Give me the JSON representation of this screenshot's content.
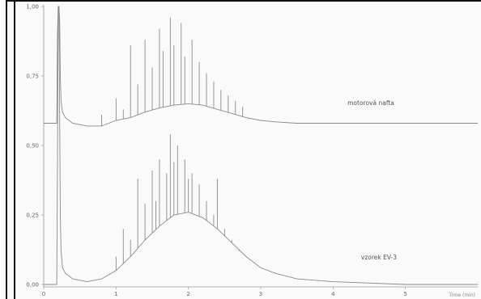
{
  "chart_data": {
    "type": "line",
    "title": "",
    "xlabel": "Time (min)",
    "ylabel": "",
    "xlim": [
      0,
      6
    ],
    "ylim": [
      0,
      1
    ],
    "grid": false,
    "x_ticks": [
      0,
      1,
      2,
      3,
      4,
      5
    ],
    "x_tick_labels": [
      "0",
      "1",
      "2",
      "3",
      "4",
      "5"
    ],
    "y_ticks": [
      0,
      0.25,
      0.5,
      0.75,
      1.0
    ],
    "y_tick_labels": [
      "0,00",
      "0,25",
      "0,50",
      "0,75",
      "1,00"
    ],
    "series": [
      {
        "name": "motorová nafta",
        "color": "#8a8a8a",
        "baseline": 0.58,
        "x": [
          0.0,
          0.1,
          0.18,
          0.19,
          0.2,
          0.21,
          0.22,
          0.23,
          0.24,
          0.26,
          0.3,
          0.4,
          0.6,
          0.8,
          1.0,
          1.2,
          1.4,
          1.6,
          1.8,
          2.0,
          2.2,
          2.4,
          2.6,
          2.8,
          3.0,
          3.2,
          3.5,
          4.0,
          5.0,
          6.0
        ],
        "y": [
          0.58,
          0.58,
          0.58,
          0.9,
          1.0,
          1.0,
          0.95,
          0.75,
          0.66,
          0.62,
          0.6,
          0.58,
          0.57,
          0.57,
          0.59,
          0.6,
          0.62,
          0.635,
          0.645,
          0.65,
          0.645,
          0.63,
          0.615,
          0.6,
          0.59,
          0.585,
          0.58,
          0.58,
          0.58,
          0.58
        ],
        "peaks": [
          {
            "x": 0.8,
            "y": 0.61
          },
          {
            "x": 1.0,
            "y": 0.67
          },
          {
            "x": 1.1,
            "y": 0.63
          },
          {
            "x": 1.2,
            "y": 0.86
          },
          {
            "x": 1.3,
            "y": 0.72
          },
          {
            "x": 1.4,
            "y": 0.88
          },
          {
            "x": 1.5,
            "y": 0.78
          },
          {
            "x": 1.6,
            "y": 0.92
          },
          {
            "x": 1.65,
            "y": 0.84
          },
          {
            "x": 1.75,
            "y": 0.96
          },
          {
            "x": 1.8,
            "y": 0.86
          },
          {
            "x": 1.9,
            "y": 0.94
          },
          {
            "x": 1.95,
            "y": 0.82
          },
          {
            "x": 2.05,
            "y": 0.88
          },
          {
            "x": 2.15,
            "y": 0.8
          },
          {
            "x": 2.25,
            "y": 0.76
          },
          {
            "x": 2.35,
            "y": 0.73
          },
          {
            "x": 2.45,
            "y": 0.7
          },
          {
            "x": 2.55,
            "y": 0.68
          },
          {
            "x": 2.65,
            "y": 0.66
          },
          {
            "x": 2.75,
            "y": 0.64
          }
        ]
      },
      {
        "name": "vzorek EV-3",
        "color": "#8a8a8a",
        "baseline": 0.0,
        "x": [
          0.0,
          0.1,
          0.18,
          0.19,
          0.2,
          0.21,
          0.22,
          0.23,
          0.24,
          0.26,
          0.3,
          0.4,
          0.6,
          0.8,
          1.0,
          1.2,
          1.4,
          1.6,
          1.8,
          2.0,
          2.2,
          2.4,
          2.6,
          2.8,
          3.0,
          3.2,
          3.5,
          4.0,
          5.0,
          6.0
        ],
        "y": [
          0.0,
          0.0,
          0.0,
          0.45,
          1.0,
          1.0,
          0.6,
          0.25,
          0.12,
          0.06,
          0.04,
          0.02,
          0.01,
          0.02,
          0.05,
          0.1,
          0.16,
          0.21,
          0.25,
          0.26,
          0.24,
          0.2,
          0.15,
          0.1,
          0.06,
          0.04,
          0.02,
          0.01,
          0.0,
          0.0
        ],
        "peaks": [
          {
            "x": 1.0,
            "y": 0.1
          },
          {
            "x": 1.1,
            "y": 0.2
          },
          {
            "x": 1.2,
            "y": 0.16
          },
          {
            "x": 1.3,
            "y": 0.38
          },
          {
            "x": 1.4,
            "y": 0.29
          },
          {
            "x": 1.5,
            "y": 0.41
          },
          {
            "x": 1.55,
            "y": 0.3
          },
          {
            "x": 1.6,
            "y": 0.45
          },
          {
            "x": 1.7,
            "y": 0.4
          },
          {
            "x": 1.75,
            "y": 0.54
          },
          {
            "x": 1.8,
            "y": 0.44
          },
          {
            "x": 1.85,
            "y": 0.5
          },
          {
            "x": 1.95,
            "y": 0.45
          },
          {
            "x": 2.0,
            "y": 0.38
          },
          {
            "x": 2.05,
            "y": 0.4
          },
          {
            "x": 2.15,
            "y": 0.36
          },
          {
            "x": 2.25,
            "y": 0.3
          },
          {
            "x": 2.35,
            "y": 0.25
          },
          {
            "x": 2.4,
            "y": 0.38
          },
          {
            "x": 2.5,
            "y": 0.2
          },
          {
            "x": 2.6,
            "y": 0.16
          },
          {
            "x": 2.7,
            "y": 0.12
          }
        ]
      }
    ]
  }
}
